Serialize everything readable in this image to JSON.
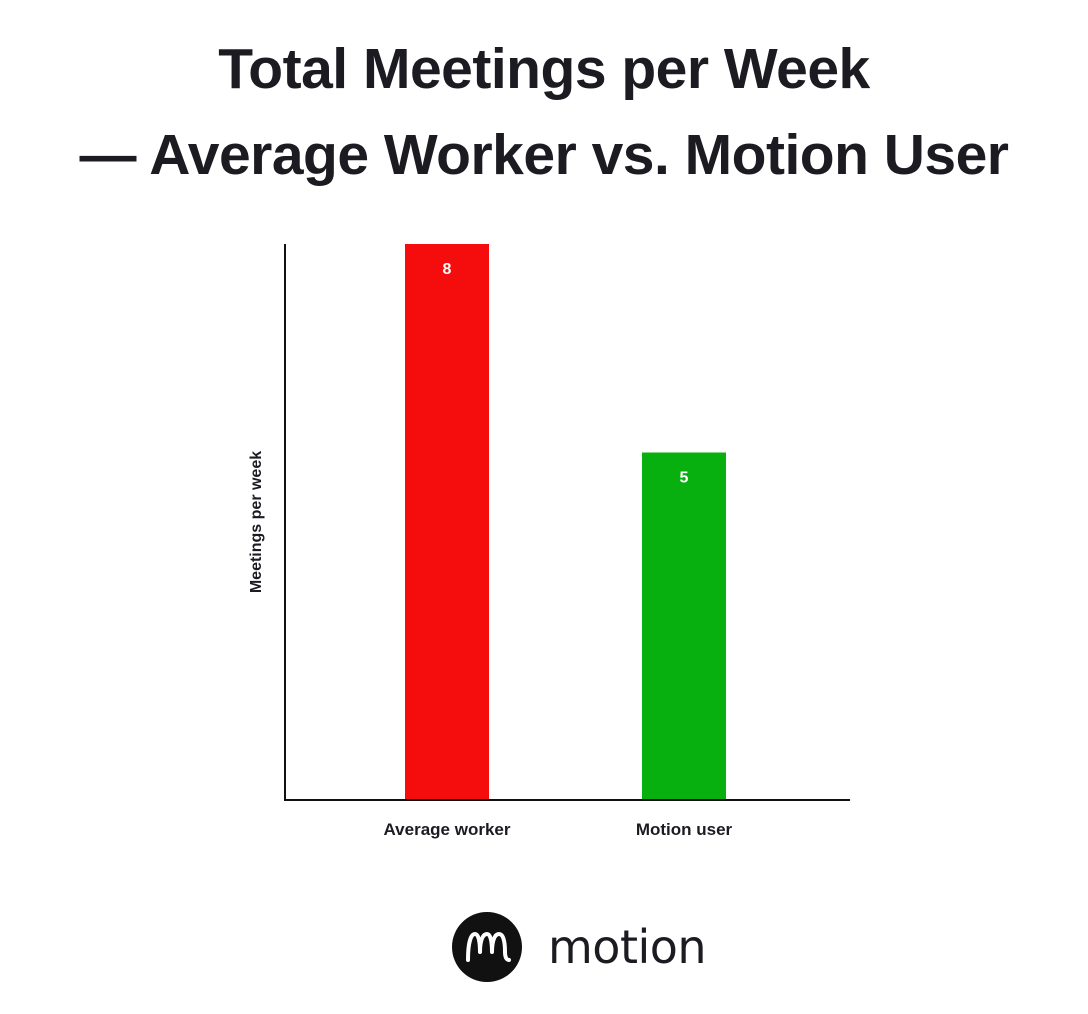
{
  "chart_data": {
    "type": "bar",
    "title": [
      "Total Meetings per Week",
      "— Average Worker vs. Motion User"
    ],
    "ylabel": "Meetings per week",
    "xlabel": "",
    "categories": [
      "Average worker",
      "Motion user"
    ],
    "values": [
      8,
      5
    ],
    "data_labels": [
      "8",
      "5"
    ],
    "bar_colors": [
      "#f50d0d",
      "#07b00e"
    ],
    "ylim": [
      0,
      8
    ],
    "grid": false,
    "legend": "none"
  },
  "brand": {
    "name": "motion",
    "logo_icon": "motion-m-logo-icon"
  },
  "colors": {
    "text": "#1c1b22",
    "axis": "#111111",
    "label_on_bar": "#ffffff",
    "background": "#ffffff"
  }
}
